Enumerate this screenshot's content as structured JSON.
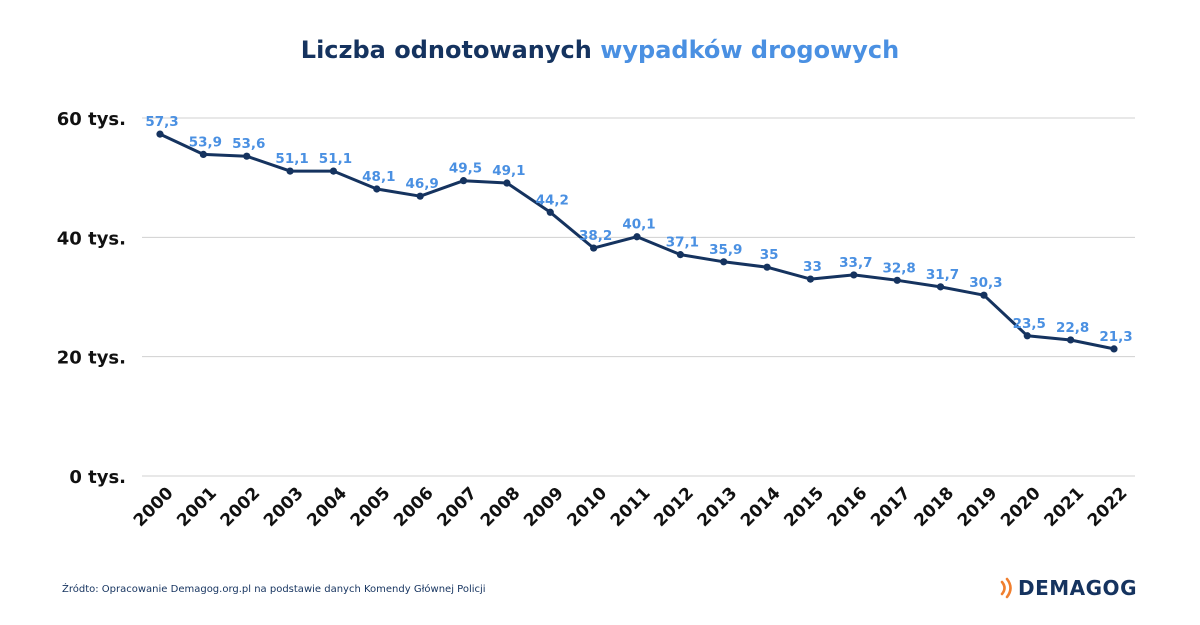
{
  "title": {
    "part1": "Liczba odnotowanych",
    "part2": "wypadków drogowych"
  },
  "colors": {
    "line": "#15335f",
    "labels": "#4a90e2",
    "accent": "#4a90e2",
    "grid": "#d0d0d0",
    "logo_mark": "#f07f2f"
  },
  "chart_data": {
    "type": "line",
    "title": "Liczba odnotowanych wypadków drogowych",
    "x": [
      "2000",
      "2001",
      "2002",
      "2003",
      "2004",
      "2005",
      "2006",
      "2007",
      "2008",
      "2009",
      "2010",
      "2011",
      "2012",
      "2013",
      "2014",
      "2015",
      "2016",
      "2017",
      "2018",
      "2019",
      "2020",
      "2021",
      "2022"
    ],
    "values": [
      57.3,
      53.9,
      53.6,
      51.1,
      51.1,
      48.1,
      46.9,
      49.5,
      49.1,
      44.2,
      38.2,
      40.1,
      37.1,
      35.9,
      35,
      33,
      33.7,
      32.8,
      31.7,
      30.3,
      23.5,
      22.8,
      21.3
    ],
    "data_labels": [
      "57,3",
      "53,9",
      "53,6",
      "51,1",
      "51,1",
      "48,1",
      "46,9",
      "49,5",
      "49,1",
      "44,2",
      "38,2",
      "40,1",
      "37,1",
      "35,9",
      "35",
      "33",
      "33,7",
      "32,8",
      "31,7",
      "30,3",
      "23,5",
      "22,8",
      "21,3"
    ],
    "yticks": [
      0,
      20,
      40,
      60
    ],
    "ytick_labels": [
      "0 tys.",
      "20 tys.",
      "40 tys.",
      "60 tys."
    ],
    "ylim": [
      0,
      60
    ],
    "grid": true,
    "legend": "none"
  },
  "footer": {
    "source": "Źródto: Opracowanie Demagog.org.pl na podstawie danych Komendy Głównej Policji",
    "logo_text": "DEMAGOG"
  }
}
